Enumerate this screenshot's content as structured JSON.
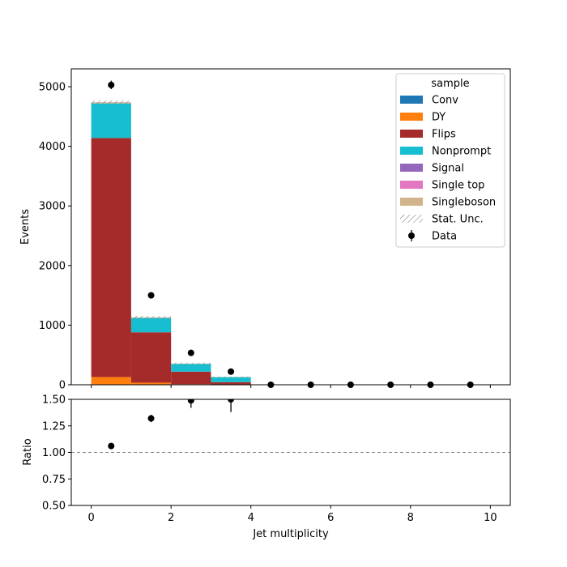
{
  "chart_data": {
    "type": "bar",
    "stacked": true,
    "x_edges": [
      0,
      1,
      2,
      3,
      4,
      5,
      6,
      7,
      8,
      9,
      10
    ],
    "xlim": [
      -0.5,
      10.5
    ],
    "xlabel": "Jet multiplicity",
    "xticks": [
      0,
      2,
      4,
      6,
      8,
      10
    ],
    "main": {
      "ylabel": "Events",
      "ylim": [
        0,
        5300
      ],
      "yticks": [
        0,
        1000,
        2000,
        3000,
        4000,
        5000
      ],
      "series": [
        {
          "name": "Conv",
          "color": "#1f77b4",
          "values": [
            0,
            0,
            0,
            0,
            0,
            0,
            0,
            0,
            0,
            0
          ]
        },
        {
          "name": "DY",
          "color": "#ff7f0e",
          "values": [
            130,
            35,
            10,
            3,
            0,
            0,
            0,
            0,
            0,
            0
          ]
        },
        {
          "name": "Flips",
          "color": "#a52a2a",
          "values": [
            4010,
            845,
            210,
            40,
            2,
            0,
            0,
            0,
            0,
            0
          ]
        },
        {
          "name": "Nonprompt",
          "color": "#17becf",
          "values": [
            580,
            240,
            130,
            85,
            2,
            0,
            0,
            0,
            0,
            0
          ]
        },
        {
          "name": "Signal",
          "color": "#9467bd",
          "values": [
            0,
            0,
            0,
            0,
            0,
            0,
            0,
            0,
            0,
            0
          ]
        },
        {
          "name": "Single top",
          "color": "#e377c2",
          "values": [
            0,
            0,
            0,
            0,
            0,
            0,
            0,
            0,
            0,
            0
          ]
        },
        {
          "name": "Singleboson",
          "color": "#d2b48c",
          "values": [
            20,
            10,
            5,
            2,
            0,
            0,
            0,
            0,
            0,
            0
          ]
        }
      ],
      "stat_unc": [
        30,
        25,
        15,
        8,
        0,
        0,
        0,
        0,
        0,
        0
      ],
      "data": {
        "name": "Data",
        "x": [
          0.5,
          1.5,
          2.5,
          3.5,
          4.5,
          5.5,
          6.5,
          7.5,
          8.5,
          9.5
        ],
        "y": [
          5030,
          1500,
          535,
          220,
          0,
          0,
          0,
          0,
          0,
          0
        ],
        "err": [
          71,
          39,
          23,
          15,
          0,
          0,
          0,
          0,
          0,
          0
        ]
      }
    },
    "legend": {
      "title": "sample",
      "placement": "top-right",
      "entries": [
        "Conv",
        "DY",
        "Flips",
        "Nonprompt",
        "Signal",
        "Single top",
        "Singleboson",
        "Stat. Unc.",
        "Data"
      ]
    },
    "ratio": {
      "ylabel": "Ratio",
      "ylim": [
        0.5,
        1.5
      ],
      "yticks": [
        "0.50",
        "0.75",
        "1.00",
        "1.25",
        "1.50"
      ],
      "reference_line": 1.0,
      "x": [
        0.5,
        1.5,
        2.5,
        3.5
      ],
      "y": [
        1.06,
        1.32,
        1.49,
        1.5
      ],
      "err": [
        0.015,
        0.035,
        0.07,
        0.12
      ]
    }
  }
}
